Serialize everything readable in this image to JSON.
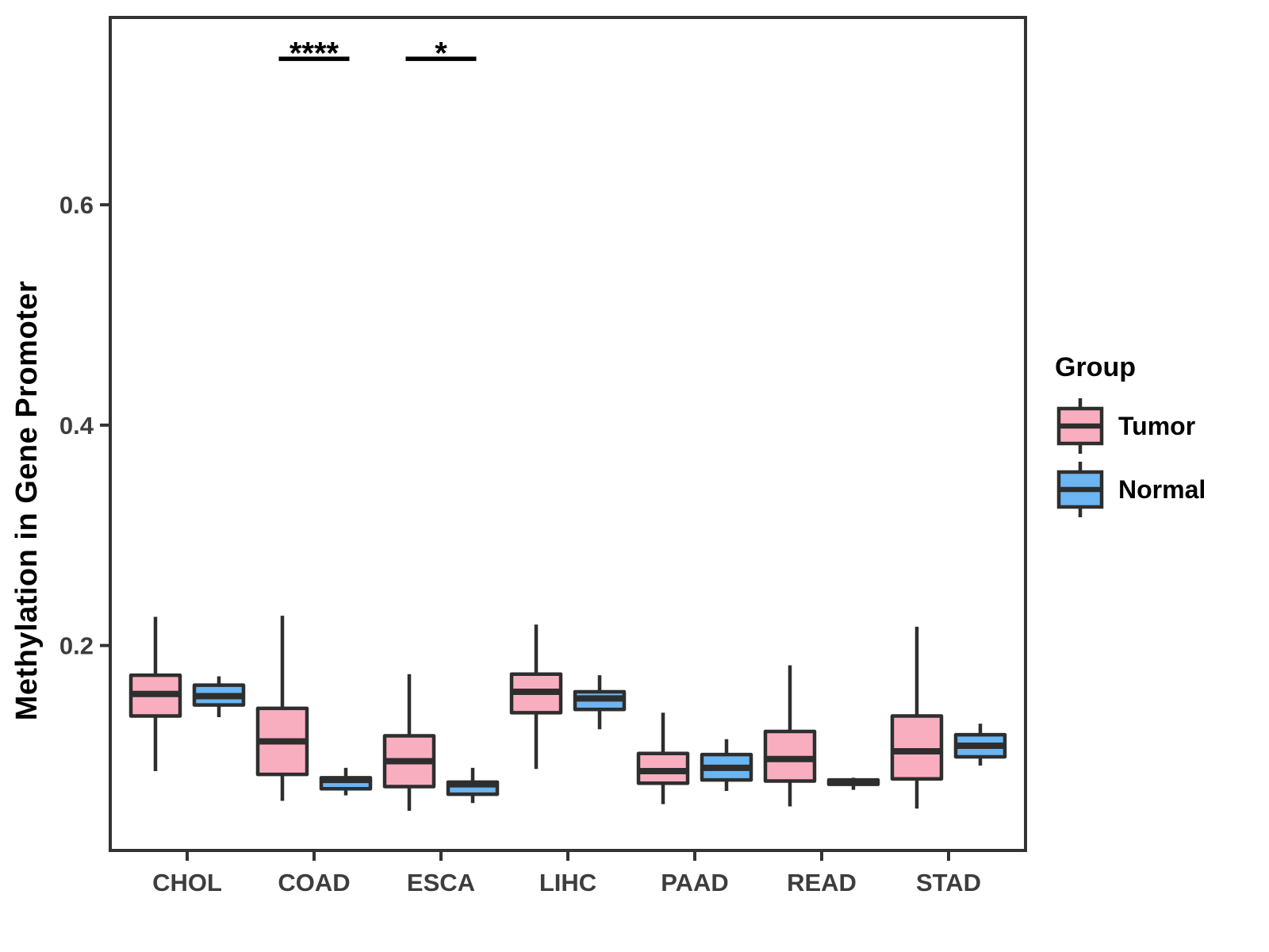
{
  "chart_data": {
    "type": "grouped_boxplot",
    "title": "",
    "xlabel": "",
    "ylabel": "Methylation in Gene Promoter",
    "categories": [
      "CHOL",
      "COAD",
      "ESCA",
      "LIHC",
      "PAAD",
      "READ",
      "STAD"
    ],
    "y_ticks": [
      0.2,
      0.4,
      0.6
    ],
    "ylim": [
      0.014,
      0.77
    ],
    "grid": "off",
    "legend": {
      "title": "Group",
      "position": "right",
      "entries": [
        {
          "label": "Tumor",
          "color": "#F9AEC0"
        },
        {
          "label": "Normal",
          "color": "#6BB5F2"
        }
      ]
    },
    "series": [
      {
        "name": "Tumor",
        "fill": "#F9AEC0",
        "boxes": [
          {
            "category": "CHOL",
            "whisker_low": 0.086,
            "q1": 0.136,
            "median": 0.156,
            "q3": 0.173,
            "whisker_high": 0.226
          },
          {
            "category": "COAD",
            "whisker_low": 0.059,
            "q1": 0.083,
            "median": 0.113,
            "q3": 0.143,
            "whisker_high": 0.227
          },
          {
            "category": "ESCA",
            "whisker_low": 0.05,
            "q1": 0.072,
            "median": 0.095,
            "q3": 0.118,
            "whisker_high": 0.174
          },
          {
            "category": "LIHC",
            "whisker_low": 0.088,
            "q1": 0.139,
            "median": 0.158,
            "q3": 0.174,
            "whisker_high": 0.219
          },
          {
            "category": "PAAD",
            "whisker_low": 0.056,
            "q1": 0.075,
            "median": 0.086,
            "q3": 0.102,
            "whisker_high": 0.139
          },
          {
            "category": "READ",
            "whisker_low": 0.054,
            "q1": 0.077,
            "median": 0.097,
            "q3": 0.122,
            "whisker_high": 0.182
          },
          {
            "category": "STAD",
            "whisker_low": 0.052,
            "q1": 0.079,
            "median": 0.104,
            "q3": 0.136,
            "whisker_high": 0.217
          }
        ]
      },
      {
        "name": "Normal",
        "fill": "#6BB5F2",
        "boxes": [
          {
            "category": "CHOL",
            "whisker_low": 0.135,
            "q1": 0.146,
            "median": 0.154,
            "q3": 0.164,
            "whisker_high": 0.172
          },
          {
            "category": "COAD",
            "whisker_low": 0.064,
            "q1": 0.07,
            "median": 0.078,
            "q3": 0.08,
            "whisker_high": 0.089
          },
          {
            "category": "ESCA",
            "whisker_low": 0.057,
            "q1": 0.065,
            "median": 0.074,
            "q3": 0.076,
            "whisker_high": 0.089
          },
          {
            "category": "LIHC",
            "whisker_low": 0.124,
            "q1": 0.142,
            "median": 0.152,
            "q3": 0.158,
            "whisker_high": 0.173
          },
          {
            "category": "PAAD",
            "whisker_low": 0.068,
            "q1": 0.078,
            "median": 0.089,
            "q3": 0.101,
            "whisker_high": 0.115
          },
          {
            "category": "READ",
            "whisker_low": 0.069,
            "q1": 0.074,
            "median": 0.076,
            "q3": 0.078,
            "whisker_high": 0.08
          },
          {
            "category": "STAD",
            "whisker_low": 0.091,
            "q1": 0.099,
            "median": 0.109,
            "q3": 0.119,
            "whisker_high": 0.129
          }
        ]
      }
    ],
    "annotations": [
      {
        "category": "COAD",
        "label": "****",
        "y": 0.733
      },
      {
        "category": "ESCA",
        "label": "*",
        "y": 0.733
      }
    ],
    "colors": {
      "box_border": "#2E2E2E",
      "axis": "#333333",
      "tick_label": "#3D3D3D",
      "annotation": "#000000",
      "background": "#FFFFFF"
    }
  }
}
